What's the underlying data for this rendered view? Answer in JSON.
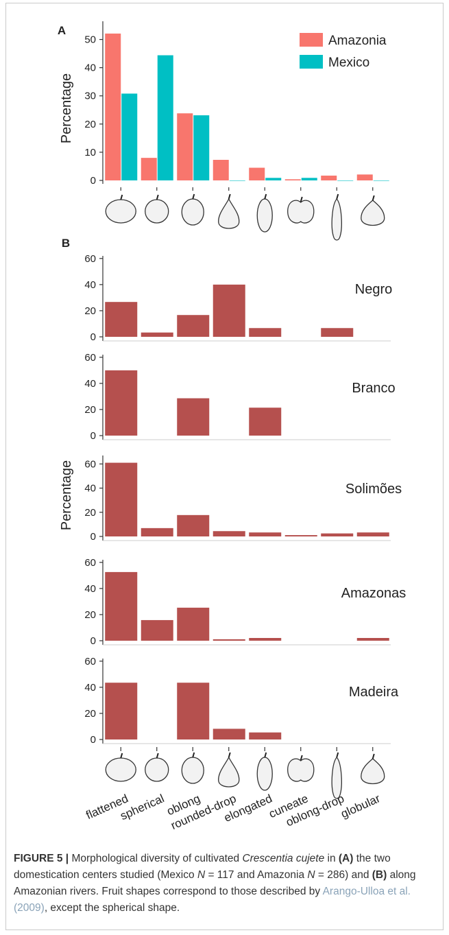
{
  "colors": {
    "amazonia": "#f8766d",
    "mexico": "#00bfc4",
    "river_bar": "#b5504e",
    "axis": "#333333"
  },
  "chart_data": [
    {
      "panel": "A",
      "type": "bar",
      "ylabel": "Percentage",
      "ylim": [
        0,
        55
      ],
      "yticks": [
        0,
        10,
        20,
        30,
        40,
        50
      ],
      "legend_position": "top-right",
      "categories": [
        "flattened",
        "spherical",
        "oblong",
        "rounded-drop",
        "elongated",
        "cuneate",
        "oblong-drop",
        "globular"
      ],
      "series": [
        {
          "name": "Amazonia",
          "color": "#f8766d",
          "values": [
            52.1,
            8.0,
            23.8,
            7.3,
            4.5,
            0.4,
            1.7,
            2.1
          ]
        },
        {
          "name": "Mexico",
          "color": "#00bfc4",
          "values": [
            30.8,
            44.4,
            23.1,
            0,
            0.9,
            0.9,
            0,
            0
          ]
        }
      ]
    },
    {
      "panel": "B",
      "type": "bar",
      "ylabel": "Percentage",
      "categories": [
        "flattened",
        "spherical",
        "oblong",
        "rounded-drop",
        "elongated",
        "cuneate",
        "oblong-drop",
        "globular"
      ],
      "facets": [
        {
          "name": "Negro",
          "ylim": [
            0,
            62
          ],
          "yticks": [
            0,
            20,
            40,
            60
          ],
          "values": [
            26.7,
            3.3,
            16.7,
            40.0,
            6.7,
            0,
            6.7,
            0
          ]
        },
        {
          "name": "Branco",
          "ylim": [
            0,
            62
          ],
          "yticks": [
            0,
            20,
            40,
            60
          ],
          "values": [
            50.0,
            0,
            28.6,
            0,
            21.4,
            0,
            0,
            0
          ]
        },
        {
          "name": "Solimões",
          "ylim": [
            0,
            67
          ],
          "yticks": [
            0,
            20,
            40,
            60
          ],
          "values": [
            61.0,
            6.9,
            17.7,
            4.4,
            3.3,
            1.1,
            2.5,
            3.3
          ]
        },
        {
          "name": "Amazonas",
          "ylim": [
            0,
            62
          ],
          "yticks": [
            0,
            20,
            40,
            60
          ],
          "values": [
            52.6,
            15.8,
            25.3,
            1.1,
            2.1,
            0,
            0,
            2.1
          ]
        },
        {
          "name": "Madeira",
          "ylim": [
            0,
            62
          ],
          "yticks": [
            0,
            20,
            40,
            60
          ],
          "values": [
            43.5,
            0,
            43.5,
            8.2,
            5.4,
            0,
            0,
            0
          ]
        }
      ]
    }
  ],
  "caption": {
    "label": "FIGURE 5 |",
    "text1": " Morphological diversity of cultivated ",
    "species": "Crescentia cujete",
    "text2": " in ",
    "a": "(A)",
    "text3": " the two domestication centers studied (Mexico ",
    "n1": "N",
    "text4": " = 117 and Amazonia ",
    "n2": "N",
    "text5": " = 286) and ",
    "b": "(B)",
    "text6": " along Amazonian rivers. Fruit shapes correspond to those described by ",
    "citation": "Arango-Ulloa et al. (2009)",
    "text7": ", except the spherical shape."
  }
}
